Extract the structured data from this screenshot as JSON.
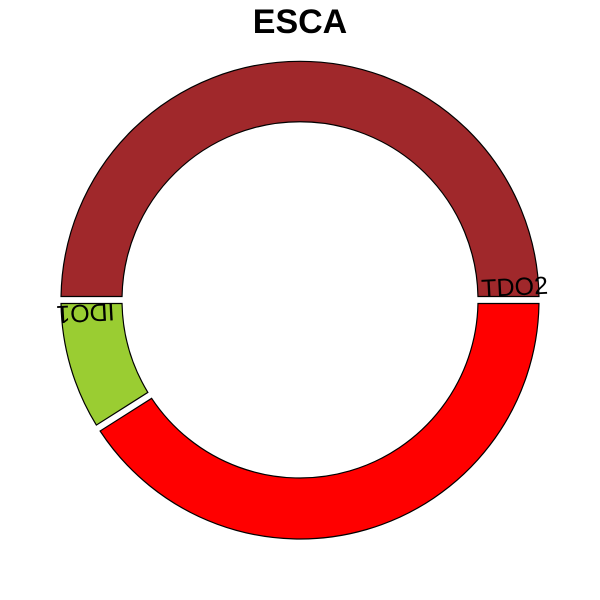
{
  "chart_data": {
    "type": "pie",
    "title": "ESCA",
    "donut": true,
    "start_angle_deg": 0,
    "direction": "counterclockwise",
    "slices": [
      {
        "label": "TDO2",
        "value": 50.0,
        "color": "#A0282B",
        "show_label": true
      },
      {
        "label": "IDO1",
        "value": 9.0,
        "color": "#9ACD32",
        "show_label": true
      },
      {
        "label": "",
        "value": 41.0,
        "color": "#FF0000",
        "show_label": false
      }
    ]
  }
}
